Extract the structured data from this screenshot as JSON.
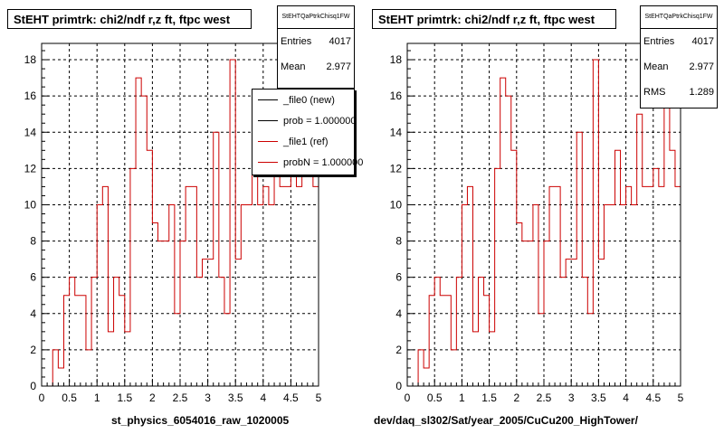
{
  "colors": {
    "hist": "#cc0000",
    "ref": "#000000",
    "grid": "#000000",
    "frame": "#000000"
  },
  "panels": [
    {
      "title": "StEHT primtrk: chi2/ndf r,z ft, ftpc west",
      "stats": {
        "name": "StEHTQaPtrkChisq1FW",
        "rows": [
          {
            "label": "Entries",
            "value": "4017"
          },
          {
            "label": "Mean",
            "value": "2.977"
          }
        ]
      },
      "legend": [
        {
          "text": "_file0 (new)",
          "color": "#000000"
        },
        {
          "text": "prob = 1.000000",
          "color": "#000000"
        },
        {
          "text": "_file1 (ref)",
          "color": "#cc0000"
        },
        {
          "text": "probN = 1.000000",
          "color": "#cc0000"
        }
      ],
      "xlabel": "st_physics_6054016_raw_1020005"
    },
    {
      "title": "StEHT primtrk: chi2/ndf r,z ft, ftpc west",
      "stats": {
        "name": "StEHTQaPtrkChisq1FW",
        "rows": [
          {
            "label": "Entries",
            "value": "4017"
          },
          {
            "label": "Mean",
            "value": "2.977"
          },
          {
            "label": "RMS",
            "value": "1.289"
          }
        ]
      },
      "legend": [],
      "xlabel": "dev/daq_sl302/Sat/year_2005/CuCu200_HighTower/"
    }
  ],
  "chart_data": {
    "type": "histogram-step",
    "title": "StEHT primtrk: chi2/ndf r,z ft, ftpc west",
    "xlim": [
      0,
      5
    ],
    "ylim": [
      0,
      18.9
    ],
    "xticks": [
      "0",
      "0.5",
      "1",
      "1.5",
      "2",
      "2.5",
      "3",
      "3.5",
      "4",
      "4.5",
      "5"
    ],
    "yticks": [
      "0",
      "2",
      "4",
      "6",
      "8",
      "10",
      "12",
      "14",
      "16",
      "18"
    ],
    "grid": true,
    "bin_width": 0.1,
    "bin_start": 0,
    "values": [
      0,
      0,
      2,
      1,
      5,
      6,
      5,
      5,
      2,
      6,
      10,
      11,
      3,
      6,
      5,
      3,
      12,
      17,
      16,
      13,
      9,
      8,
      8,
      10,
      4,
      8,
      11,
      11,
      6,
      7,
      7,
      14,
      6,
      4,
      18,
      7,
      10,
      10,
      13,
      10,
      11,
      10,
      15,
      11,
      11,
      12,
      11,
      16,
      13,
      11
    ]
  }
}
